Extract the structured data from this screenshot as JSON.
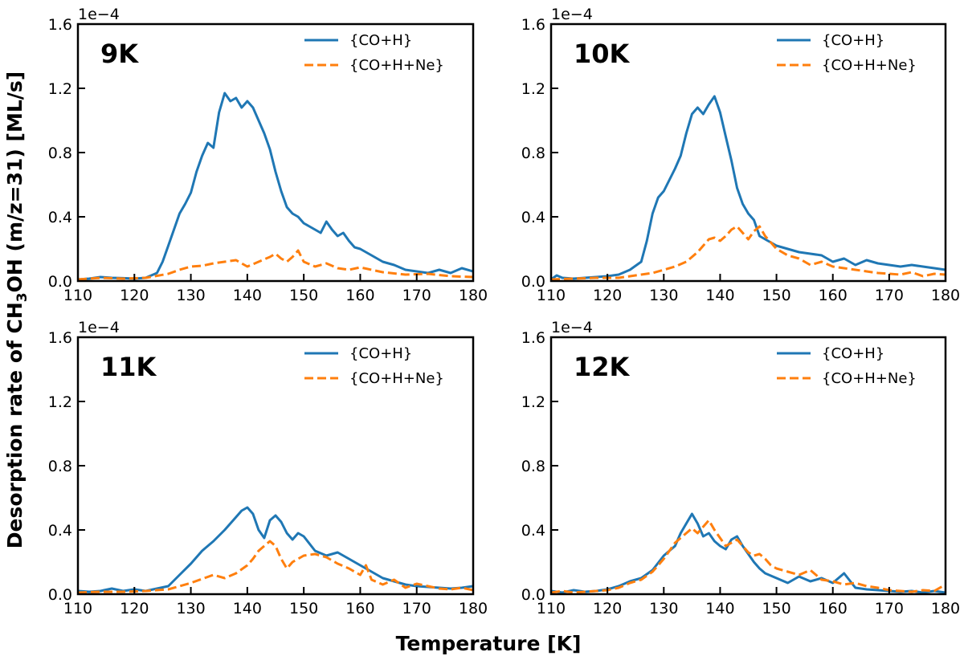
{
  "figure": {
    "xlabel": "Temperature [K]",
    "ylabel": {
      "before": "Desorption rate of CH",
      "sub": "3",
      "after": "OH (m/z=31) [ML/s]"
    }
  },
  "chart_data": [
    {
      "type": "line",
      "panel_label": "9K",
      "xlim": [
        110,
        180
      ],
      "ylim": [
        0,
        0.00016
      ],
      "y_offset_text": "1e−4",
      "xticks": [
        110,
        120,
        130,
        140,
        150,
        160,
        170,
        180
      ],
      "yticks": [
        0.0,
        0.4,
        0.8,
        1.2,
        1.6
      ],
      "legend_position": "top-right",
      "series": [
        {
          "name": "{CO+H}",
          "color": "#1f77b4",
          "style": "solid",
          "x": [
            110,
            112,
            114,
            116,
            118,
            120,
            122,
            124,
            125,
            126,
            127,
            128,
            129,
            130,
            131,
            132,
            133,
            134,
            135,
            136,
            137,
            138,
            139,
            140,
            141,
            142,
            143,
            144,
            145,
            146,
            147,
            148,
            149,
            150,
            151,
            152,
            153,
            154,
            155,
            156,
            157,
            158,
            159,
            160,
            162,
            164,
            166,
            168,
            170,
            172,
            174,
            176,
            178,
            180
          ],
          "y": [
            1e-06,
            1.5e-06,
            2.5e-06,
            2e-06,
            1.8e-06,
            1.5e-06,
            2e-06,
            5e-06,
            1.2e-05,
            2.2e-05,
            3.2e-05,
            4.2e-05,
            4.8e-05,
            5.5e-05,
            6.8e-05,
            7.8e-05,
            8.6e-05,
            8.3e-05,
            0.000105,
            0.000117,
            0.000112,
            0.000114,
            0.000108,
            0.000112,
            0.000108,
            0.0001,
            9.2e-05,
            8.2e-05,
            6.8e-05,
            5.6e-05,
            4.6e-05,
            4.2e-05,
            4e-05,
            3.6e-05,
            3.4e-05,
            3.2e-05,
            3e-05,
            3.7e-05,
            3.2e-05,
            2.8e-05,
            3e-05,
            2.5e-05,
            2.1e-05,
            2e-05,
            1.6e-05,
            1.2e-05,
            1e-05,
            7e-06,
            6e-06,
            5e-06,
            7e-06,
            5e-06,
            8e-06,
            6e-06
          ]
        },
        {
          "name": "{CO+H+Ne}",
          "color": "#ff7f0e",
          "style": "dashed",
          "x": [
            110,
            114,
            118,
            122,
            126,
            128,
            130,
            132,
            134,
            136,
            138,
            140,
            142,
            144,
            145,
            146,
            147,
            148,
            149,
            150,
            152,
            154,
            156,
            158,
            160,
            164,
            168,
            172,
            176,
            180
          ],
          "y": [
            1e-06,
            2e-06,
            1.5e-06,
            2e-06,
            4.5e-06,
            7e-06,
            9e-06,
            9.5e-06,
            1.1e-05,
            1.2e-05,
            1.3e-05,
            9e-06,
            1.2e-05,
            1.5e-05,
            1.7e-05,
            1.4e-05,
            1.2e-05,
            1.5e-05,
            1.9e-05,
            1.2e-05,
            9e-06,
            1.1e-05,
            8e-06,
            7e-06,
            8.5e-06,
            5.5e-06,
            4e-06,
            4.5e-06,
            3e-06,
            2.5e-06
          ]
        }
      ]
    },
    {
      "type": "line",
      "panel_label": "10K",
      "xlim": [
        110,
        180
      ],
      "ylim": [
        0,
        0.00016
      ],
      "y_offset_text": "1e−4",
      "xticks": [
        110,
        120,
        130,
        140,
        150,
        160,
        170,
        180
      ],
      "yticks": [
        0.0,
        0.4,
        0.8,
        1.2,
        1.6
      ],
      "legend_position": "top-right",
      "series": [
        {
          "name": "{CO+H}",
          "color": "#1f77b4",
          "style": "solid",
          "x": [
            110,
            111,
            112,
            114,
            116,
            118,
            120,
            122,
            124,
            126,
            127,
            128,
            129,
            130,
            131,
            132,
            133,
            134,
            135,
            136,
            137,
            138,
            139,
            140,
            141,
            142,
            143,
            144,
            145,
            146,
            147,
            148,
            149,
            150,
            152,
            154,
            156,
            158,
            160,
            162,
            164,
            166,
            168,
            170,
            172,
            174,
            176,
            178,
            180
          ],
          "y": [
            1e-06,
            3.5e-06,
            2e-06,
            1.5e-06,
            2e-06,
            2.5e-06,
            3e-06,
            4e-06,
            7e-06,
            1.2e-05,
            2.5e-05,
            4.2e-05,
            5.2e-05,
            5.6e-05,
            6.3e-05,
            7e-05,
            7.8e-05,
            9.2e-05,
            0.000104,
            0.000108,
            0.000104,
            0.00011,
            0.000115,
            0.000105,
            9e-05,
            7.5e-05,
            5.8e-05,
            4.8e-05,
            4.2e-05,
            3.8e-05,
            2.8e-05,
            2.6e-05,
            2.4e-05,
            2.2e-05,
            2e-05,
            1.8e-05,
            1.7e-05,
            1.6e-05,
            1.2e-05,
            1.4e-05,
            1e-05,
            1.3e-05,
            1.1e-05,
            1e-05,
            9e-06,
            1e-05,
            9e-06,
            8e-06,
            7e-06
          ]
        },
        {
          "name": "{CO+H+Ne}",
          "color": "#ff7f0e",
          "style": "dashed",
          "x": [
            110,
            114,
            118,
            122,
            124,
            126,
            128,
            130,
            132,
            134,
            136,
            137,
            138,
            139,
            140,
            141,
            142,
            143,
            144,
            145,
            146,
            147,
            148,
            150,
            152,
            154,
            156,
            158,
            160,
            162,
            164,
            166,
            168,
            170,
            172,
            174,
            176,
            178,
            180
          ],
          "y": [
            1e-06,
            1.5e-06,
            2e-06,
            2e-06,
            3e-06,
            4e-06,
            5e-06,
            7e-06,
            9e-06,
            1.2e-05,
            1.8e-05,
            2.2e-05,
            2.6e-05,
            2.7e-05,
            2.5e-05,
            2.8e-05,
            3.2e-05,
            3.4e-05,
            3e-05,
            2.6e-05,
            3.1e-05,
            3.4e-05,
            2.8e-05,
            2e-05,
            1.6e-05,
            1.4e-05,
            1e-05,
            1.2e-05,
            9e-06,
            8e-06,
            7e-06,
            6e-06,
            5e-06,
            4.5e-06,
            4e-06,
            5.5e-06,
            3e-06,
            4.5e-06,
            4e-06
          ]
        }
      ]
    },
    {
      "type": "line",
      "panel_label": "11K",
      "xlim": [
        110,
        180
      ],
      "ylim": [
        0,
        0.00016
      ],
      "y_offset_text": "1e−4",
      "xticks": [
        110,
        120,
        130,
        140,
        150,
        160,
        170,
        180
      ],
      "yticks": [
        0.0,
        0.4,
        0.8,
        1.2,
        1.6
      ],
      "legend_position": "top-right",
      "series": [
        {
          "name": "{CO+H}",
          "color": "#1f77b4",
          "style": "solid",
          "x": [
            110,
            112,
            114,
            116,
            118,
            120,
            122,
            124,
            126,
            128,
            130,
            132,
            134,
            136,
            138,
            139,
            140,
            141,
            142,
            143,
            144,
            145,
            146,
            147,
            148,
            149,
            150,
            152,
            154,
            156,
            158,
            160,
            162,
            164,
            166,
            168,
            170,
            172,
            174,
            176,
            178,
            180
          ],
          "y": [
            2e-06,
            1.5e-06,
            2e-06,
            3.5e-06,
            2e-06,
            3e-06,
            2e-06,
            3.5e-06,
            5e-06,
            1.2e-05,
            1.9e-05,
            2.7e-05,
            3.3e-05,
            4e-05,
            4.8e-05,
            5.2e-05,
            5.4e-05,
            5e-05,
            4e-05,
            3.5e-05,
            4.6e-05,
            4.9e-05,
            4.5e-05,
            3.8e-05,
            3.4e-05,
            3.8e-05,
            3.6e-05,
            2.7e-05,
            2.4e-05,
            2.6e-05,
            2.2e-05,
            1.8e-05,
            1.4e-05,
            1e-05,
            8e-06,
            6e-06,
            5e-06,
            4.5e-06,
            4e-06,
            3.5e-06,
            4e-06,
            5e-06
          ]
        },
        {
          "name": "{CO+H+Ne}",
          "color": "#ff7f0e",
          "style": "dashed",
          "x": [
            110,
            114,
            118,
            122,
            126,
            128,
            130,
            132,
            134,
            136,
            138,
            140,
            141,
            142,
            143,
            144,
            145,
            146,
            147,
            148,
            150,
            152,
            154,
            156,
            158,
            160,
            161,
            162,
            164,
            166,
            168,
            170,
            172,
            174,
            176,
            178,
            180
          ],
          "y": [
            1e-06,
            1.5e-06,
            1.5e-06,
            2e-06,
            3e-06,
            5e-06,
            7e-06,
            9.5e-06,
            1.2e-05,
            1e-05,
            1.3e-05,
            1.8e-05,
            2.2e-05,
            2.7e-05,
            3e-05,
            3.3e-05,
            3e-05,
            2.2e-05,
            1.6e-05,
            2e-05,
            2.4e-05,
            2.5e-05,
            2.3e-05,
            1.9e-05,
            1.6e-05,
            1.2e-05,
            1.8e-05,
            9e-06,
            6e-06,
            9e-06,
            4e-06,
            6.5e-06,
            5e-06,
            3.5e-06,
            3e-06,
            4e-06,
            2.5e-06
          ]
        }
      ]
    },
    {
      "type": "line",
      "panel_label": "12K",
      "xlim": [
        110,
        180
      ],
      "ylim": [
        0,
        0.00016
      ],
      "y_offset_text": "1e−4",
      "xticks": [
        110,
        120,
        130,
        140,
        150,
        160,
        170,
        180
      ],
      "yticks": [
        0.0,
        0.4,
        0.8,
        1.2,
        1.6
      ],
      "legend_position": "top-right",
      "series": [
        {
          "name": "{CO+H}",
          "color": "#1f77b4",
          "style": "solid",
          "x": [
            110,
            112,
            114,
            116,
            118,
            120,
            122,
            124,
            126,
            128,
            130,
            132,
            133,
            134,
            135,
            136,
            137,
            138,
            139,
            140,
            141,
            142,
            143,
            144,
            145,
            146,
            147,
            148,
            150,
            152,
            154,
            156,
            158,
            160,
            162,
            164,
            166,
            168,
            170,
            172,
            174,
            176,
            178,
            180
          ],
          "y": [
            2e-06,
            1e-06,
            2.5e-06,
            1.5e-06,
            2e-06,
            3e-06,
            5e-06,
            8e-06,
            1e-05,
            1.5e-05,
            2.4e-05,
            3e-05,
            3.8e-05,
            4.4e-05,
            5e-05,
            4.4e-05,
            3.6e-05,
            3.8e-05,
            3.3e-05,
            3e-05,
            2.8e-05,
            3.4e-05,
            3.6e-05,
            3e-05,
            2.5e-05,
            2e-05,
            1.6e-05,
            1.3e-05,
            1e-05,
            7e-06,
            1.1e-05,
            8e-06,
            1e-05,
            7e-06,
            1.3e-05,
            4e-06,
            3e-06,
            2.5e-06,
            2e-06,
            1.5e-06,
            2e-06,
            1e-06,
            2e-06,
            1e-06
          ]
        },
        {
          "name": "{CO+H+Ne}",
          "color": "#ff7f0e",
          "style": "dashed",
          "x": [
            110,
            112,
            114,
            116,
            118,
            120,
            122,
            124,
            126,
            128,
            130,
            132,
            134,
            135,
            136,
            137,
            138,
            139,
            140,
            141,
            142,
            143,
            144,
            145,
            146,
            147,
            148,
            149,
            150,
            152,
            154,
            156,
            158,
            160,
            162,
            164,
            166,
            168,
            170,
            172,
            174,
            176,
            178,
            180
          ],
          "y": [
            1e-06,
            2e-06,
            1e-06,
            1.5e-06,
            2e-06,
            2.5e-06,
            4e-06,
            7e-06,
            9e-06,
            1.4e-05,
            2.2e-05,
            3.2e-05,
            3.8e-05,
            4.1e-05,
            3.8e-05,
            4.2e-05,
            4.6e-05,
            4e-05,
            3.5e-05,
            3e-05,
            3.2e-05,
            3.4e-05,
            3e-05,
            2.6e-05,
            2.4e-05,
            2.5e-05,
            2.2e-05,
            1.8e-05,
            1.6e-05,
            1.4e-05,
            1.2e-05,
            1.5e-05,
            9e-06,
            8e-06,
            6e-06,
            7e-06,
            5e-06,
            4e-06,
            2.5e-06,
            2e-06,
            1.5e-06,
            2.5e-06,
            2e-06,
            6e-06
          ]
        }
      ]
    }
  ]
}
